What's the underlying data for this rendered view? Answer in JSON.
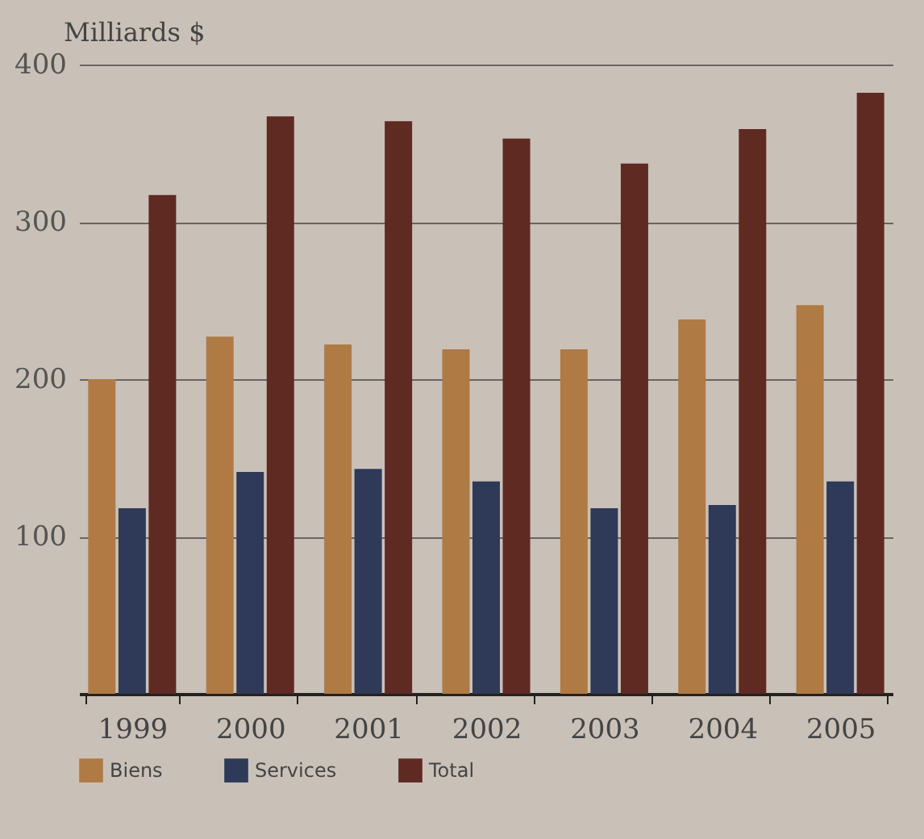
{
  "chart_data": {
    "type": "bar",
    "ylabel": "Milliards $",
    "categories": [
      "1999",
      "2000",
      "2001",
      "2002",
      "2003",
      "2004",
      "2005"
    ],
    "series": [
      {
        "name": "Biens",
        "color": "#b07a45",
        "values": [
          200,
          227,
          222,
          219,
          219,
          238,
          247
        ]
      },
      {
        "name": "Services",
        "color": "#2e3a58",
        "values": [
          118,
          141,
          143,
          135,
          118,
          120,
          135
        ]
      },
      {
        "name": "Total",
        "color": "#5e2a22",
        "values": [
          317,
          367,
          364,
          353,
          337,
          359,
          382
        ]
      }
    ],
    "ylim": [
      0,
      400
    ],
    "yticks": [
      100,
      200,
      300,
      400
    ],
    "grid": "y",
    "legend": "bottom"
  }
}
